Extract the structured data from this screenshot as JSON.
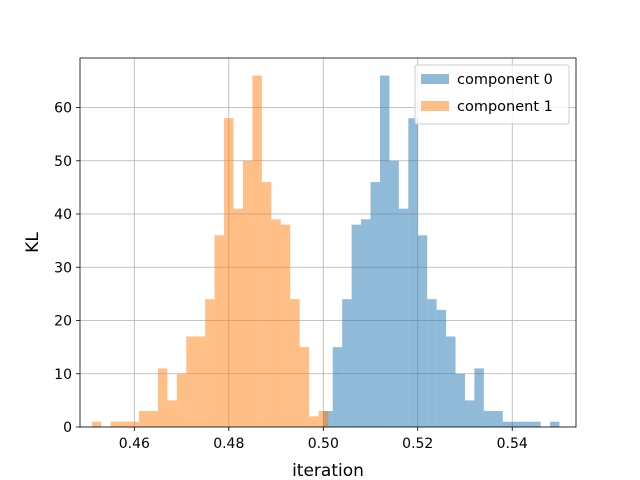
{
  "chart_data": {
    "type": "histogram",
    "title": "",
    "xlabel": "iteration",
    "ylabel": "KL",
    "xlim": [
      0.4485,
      0.5535
    ],
    "ylim": [
      0,
      69.3
    ],
    "x_ticks": [
      0.46,
      0.48,
      0.5,
      0.52,
      0.54
    ],
    "x_tick_labels": [
      "0.46",
      "0.48",
      "0.50",
      "0.52",
      "0.54"
    ],
    "y_ticks": [
      0,
      10,
      20,
      30,
      40,
      50,
      60
    ],
    "y_tick_labels": [
      "0",
      "10",
      "20",
      "30",
      "40",
      "50",
      "60"
    ],
    "grid": true,
    "legend_position": "top-right",
    "bin_width": 0.002,
    "series": [
      {
        "name": "component 0",
        "color": "#1f77b4",
        "alpha": 0.5,
        "bins": [
          {
            "x0": 0.5,
            "count": 3
          },
          {
            "x0": 0.502,
            "count": 15
          },
          {
            "x0": 0.504,
            "count": 24
          },
          {
            "x0": 0.506,
            "count": 38
          },
          {
            "x0": 0.508,
            "count": 39
          },
          {
            "x0": 0.51,
            "count": 46
          },
          {
            "x0": 0.512,
            "count": 66
          },
          {
            "x0": 0.514,
            "count": 50
          },
          {
            "x0": 0.516,
            "count": 41
          },
          {
            "x0": 0.518,
            "count": 58
          },
          {
            "x0": 0.52,
            "count": 36
          },
          {
            "x0": 0.522,
            "count": 24
          },
          {
            "x0": 0.524,
            "count": 22
          },
          {
            "x0": 0.526,
            "count": 17
          },
          {
            "x0": 0.528,
            "count": 10
          },
          {
            "x0": 0.53,
            "count": 5
          },
          {
            "x0": 0.532,
            "count": 11
          },
          {
            "x0": 0.534,
            "count": 3
          },
          {
            "x0": 0.536,
            "count": 3
          },
          {
            "x0": 0.538,
            "count": 1
          },
          {
            "x0": 0.54,
            "count": 1
          },
          {
            "x0": 0.542,
            "count": 1
          },
          {
            "x0": 0.544,
            "count": 1
          },
          {
            "x0": 0.546,
            "count": 0
          },
          {
            "x0": 0.548,
            "count": 1
          }
        ]
      },
      {
        "name": "component 1",
        "color": "#ff7f0e",
        "alpha": 0.5,
        "bins": [
          {
            "x0": 0.451,
            "count": 1
          },
          {
            "x0": 0.453,
            "count": 0
          },
          {
            "x0": 0.455,
            "count": 1
          },
          {
            "x0": 0.457,
            "count": 1
          },
          {
            "x0": 0.459,
            "count": 1
          },
          {
            "x0": 0.461,
            "count": 3
          },
          {
            "x0": 0.463,
            "count": 3
          },
          {
            "x0": 0.465,
            "count": 11
          },
          {
            "x0": 0.467,
            "count": 5
          },
          {
            "x0": 0.469,
            "count": 10
          },
          {
            "x0": 0.471,
            "count": 17
          },
          {
            "x0": 0.473,
            "count": 17
          },
          {
            "x0": 0.475,
            "count": 24
          },
          {
            "x0": 0.477,
            "count": 36
          },
          {
            "x0": 0.479,
            "count": 58
          },
          {
            "x0": 0.481,
            "count": 41
          },
          {
            "x0": 0.483,
            "count": 50
          },
          {
            "x0": 0.485,
            "count": 66
          },
          {
            "x0": 0.487,
            "count": 46
          },
          {
            "x0": 0.489,
            "count": 39
          },
          {
            "x0": 0.491,
            "count": 38
          },
          {
            "x0": 0.493,
            "count": 24
          },
          {
            "x0": 0.495,
            "count": 15
          },
          {
            "x0": 0.497,
            "count": 2
          },
          {
            "x0": 0.499,
            "count": 3
          }
        ]
      }
    ]
  }
}
